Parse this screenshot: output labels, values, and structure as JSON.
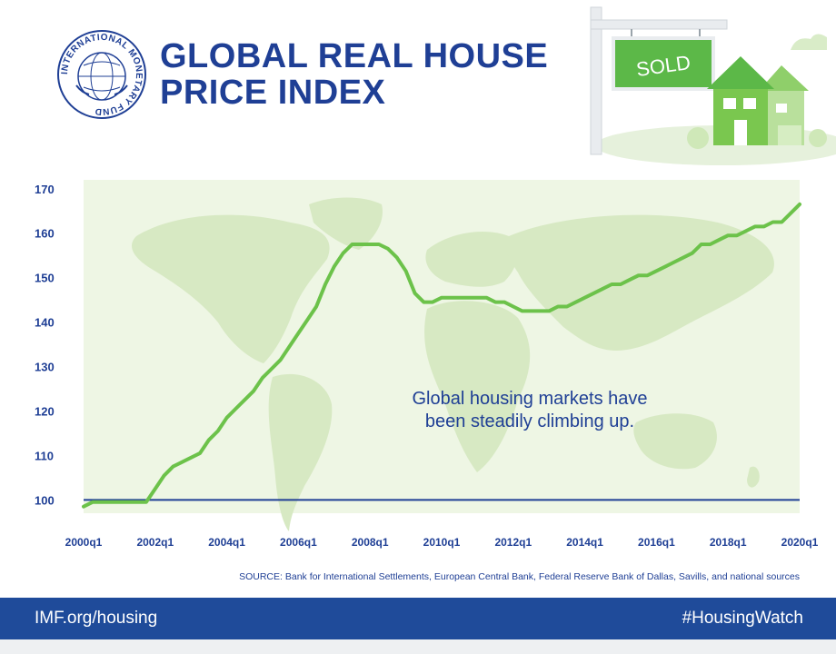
{
  "seal_text": "INTERNATIONAL MONETARY FUND",
  "header": {
    "title_line1": "GLOBAL REAL HOUSE",
    "title_line2": "PRICE INDEX",
    "sign_text": "SOLD"
  },
  "colors": {
    "brand_blue": "#1f3f95",
    "footer_blue": "#1f4b9a",
    "line_green": "#6cc24a",
    "plot_bg": "#eef6e4",
    "map_green": "#d7e9c3"
  },
  "chart_data": {
    "type": "line",
    "title": "GLOBAL REAL HOUSE PRICE INDEX",
    "xlabel": "",
    "ylabel": "",
    "ylim": [
      97,
      172
    ],
    "yticks": [
      100,
      110,
      120,
      130,
      140,
      150,
      160,
      170
    ],
    "xtick_labels": [
      "2000q1",
      "2002q1",
      "2004q1",
      "2006q1",
      "2008q1",
      "2010q1",
      "2012q1",
      "2014q1",
      "2016q1",
      "2018q1",
      "2020q1"
    ],
    "baseline": 100,
    "annotation": "Global housing markets have been steadily climbing up.",
    "annotation_lines": [
      "Global housing markets have",
      "been steadily climbing up."
    ],
    "series": [
      {
        "name": "Global real house price index",
        "x": [
          2000.0,
          2000.25,
          2000.5,
          2000.75,
          2001.0,
          2001.25,
          2001.5,
          2001.75,
          2002.0,
          2002.25,
          2002.5,
          2002.75,
          2003.0,
          2003.25,
          2003.5,
          2003.75,
          2004.0,
          2004.25,
          2004.5,
          2004.75,
          2005.0,
          2005.25,
          2005.5,
          2005.75,
          2006.0,
          2006.25,
          2006.5,
          2006.75,
          2007.0,
          2007.25,
          2007.5,
          2007.75,
          2008.0,
          2008.25,
          2008.5,
          2008.75,
          2009.0,
          2009.25,
          2009.5,
          2009.75,
          2010.0,
          2010.25,
          2010.5,
          2010.75,
          2011.0,
          2011.25,
          2011.5,
          2011.75,
          2012.0,
          2012.25,
          2012.5,
          2012.75,
          2013.0,
          2013.25,
          2013.5,
          2013.75,
          2014.0,
          2014.25,
          2014.5,
          2014.75,
          2015.0,
          2015.25,
          2015.5,
          2015.75,
          2016.0,
          2016.25,
          2016.5,
          2016.75,
          2017.0,
          2017.25,
          2017.5,
          2017.75,
          2018.0,
          2018.25,
          2018.5,
          2018.75,
          2019.0,
          2019.25,
          2019.5,
          2019.75,
          2020.0
        ],
        "values": [
          98.5,
          99.5,
          99.5,
          99.5,
          99.5,
          99.5,
          99.5,
          99.5,
          102.5,
          105.5,
          107.5,
          108.5,
          109.5,
          110.5,
          113.5,
          115.5,
          118.5,
          120.5,
          122.5,
          124.5,
          127.5,
          129.5,
          131.5,
          134.5,
          137.5,
          140.5,
          143.5,
          148.5,
          152.5,
          155.5,
          157.5,
          157.5,
          157.5,
          157.5,
          156.5,
          154.5,
          151.5,
          146.5,
          144.5,
          144.5,
          145.5,
          145.5,
          145.5,
          145.5,
          145.5,
          145.5,
          144.5,
          144.5,
          143.5,
          142.5,
          142.5,
          142.5,
          142.5,
          143.5,
          143.5,
          144.5,
          145.5,
          146.5,
          147.5,
          148.5,
          148.5,
          149.5,
          150.5,
          150.5,
          151.5,
          152.5,
          153.5,
          154.5,
          155.5,
          157.5,
          157.5,
          158.5,
          159.5,
          159.5,
          160.5,
          161.5,
          161.5,
          162.5,
          162.5,
          164.5,
          166.5
        ]
      }
    ]
  },
  "source_text": "SOURCE: Bank for International Settlements, European Central Bank, Federal Reserve Bank of Dallas, Savills, and national sources",
  "footer": {
    "left": "IMF.org/housing",
    "right": "#HousingWatch"
  }
}
